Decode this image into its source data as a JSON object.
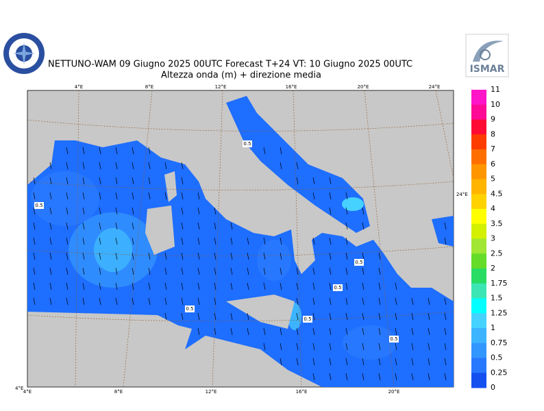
{
  "header": {
    "title": "NETTUNO-WAM  09   Giugno  2025 00UTC Forecast T+24 VT: 10   Giugno  2025 00UTC",
    "subtitle": "Altezza onda (m) + direzione media"
  },
  "logos": {
    "right_text": "ISMAR"
  },
  "map": {
    "top_labels": [
      "4°E",
      "8°E",
      "12°E",
      "16°E",
      "20°E",
      "24°E"
    ],
    "bottom_labels": [
      "4°E",
      "8°E",
      "12°E",
      "16°E",
      "20°E"
    ],
    "right_label": "24°E",
    "corner_label": "4°E",
    "contour_labels": [
      "0.5",
      "0.5",
      "0.5",
      "0.5",
      "0.5",
      "0.5",
      "0.5"
    ]
  },
  "colorbar": {
    "labels": [
      "11",
      "10",
      "9",
      "8",
      "7",
      "6",
      "5",
      "4.5",
      "4",
      "3.5",
      "3",
      "2.5",
      "2",
      "1.75",
      "1.5",
      "1.25",
      "1",
      "0.75",
      "0.5",
      "0.25",
      "0"
    ],
    "colors": [
      "#ff14c8",
      "#ff0a96",
      "#ff0a32",
      "#ff3c00",
      "#ff6e00",
      "#ff9600",
      "#ffb400",
      "#ffd200",
      "#ffff00",
      "#d2f000",
      "#a0e632",
      "#64dc28",
      "#28dc64",
      "#3ce6b4",
      "#00ffff",
      "#46d2ff",
      "#3cb4ff",
      "#3296ff",
      "#2878ff",
      "#1450f0"
    ]
  }
}
